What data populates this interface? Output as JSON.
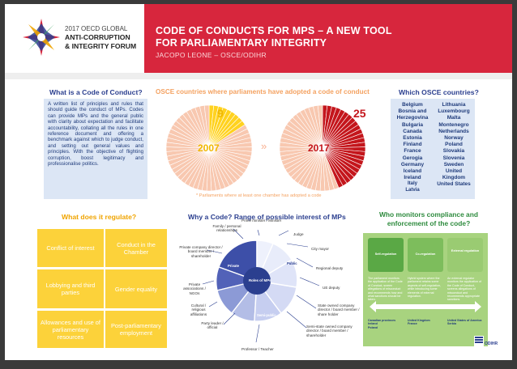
{
  "header": {
    "forum_line1": "2017 OECD GLOBAL",
    "forum_line2": "ANTI-CORRUPTION",
    "forum_line3": "& INTEGRITY FORUM",
    "title_line1": "CODE OF CONDUCTS FOR MPS – A NEW TOOL",
    "title_line2": "FOR PARLIAMENTARY INTEGRITY",
    "author": "JACOPO LEONE – OSCE/ODIHR"
  },
  "what_is": {
    "heading": "What is a Code of Conduct?",
    "text": "A written list of principles and rules that should guide the conduct of MPs. Codes can provide MPs and the general public with clarity about expectation and facilitate accountability, collating all the rules in one reference document and offering a benchmark against which to judge conduct, and setting out general values and principles. With the objective of flighting corruption, boost legitimacy and professionalise politics."
  },
  "adoption": {
    "heading": "OSCE countries where parliaments have adopted a code of conduct",
    "count_2007": "9",
    "count_2017": "25",
    "year_2007": "2007",
    "year_2017": "2017",
    "arrow": "»",
    "footnote": "* Parliaments where at least one chamber has adopted a code",
    "total_slices": 57,
    "colors": {
      "filled_2007": "#ffd21f",
      "filled_2017": "#c4161c",
      "empty": "#f8c8b0"
    }
  },
  "which": {
    "heading": "Which OSCE countries?",
    "left": [
      "Belgium",
      "Bosnia and",
      "Herzegovina",
      "Bulgaria",
      "Canada",
      "Estonia",
      "Finland",
      "France",
      "Gerogia",
      "Germany",
      "Iceland",
      "Ireland",
      "Italy",
      "Latvia"
    ],
    "right": [
      "Lithuania",
      "Luxembourg",
      "Malta",
      "Montenegro",
      "Netherlands",
      "Norway",
      "Poland",
      "Slovakia",
      "Slovenia",
      "Sweden",
      "United",
      "Kingdom",
      "United States"
    ]
  },
  "regulate": {
    "heading": "What does it regulate?",
    "tiles": [
      "Conflict of interest",
      "Conduct in the Chamber",
      "Lobbying and third parties",
      "Gender equality",
      "Allowances and use of parliamentary resources",
      "Post-parliamentary employment"
    ]
  },
  "range": {
    "heading": "Why a Code? Range of possible interest of MPs",
    "center": "Roles of MPs",
    "sectors": [
      "Private",
      "Public",
      "Semi-public"
    ],
    "labels": [
      "Prime minister / Minister",
      "Judge",
      "City mayor",
      "Regional deputy",
      "UE deputy",
      "State owned company director / board member / share holder",
      "Semi-state owned company director / board member / shareholder",
      "Professor / Teacher",
      "Party leader / official",
      "Cultural / religious affiliations",
      "Private associations / NGOs",
      "Private company director / board member / shareholder",
      "Family / personal relationships"
    ]
  },
  "monitor": {
    "heading": "Who monitors compliance and enforcement of the code?",
    "columns": [
      "Self-regulation",
      "Co-regulation",
      "External regulation"
    ],
    "descs": [
      "The parliament monitors the application of the Code of Conduct, screen allegations of misconduct and recommends how and what sanctions should be taken.",
      "Hybrid system where the parliament retains some aspects of self-regulation, while introducing some elements of external regulation.",
      "An external regulator monitors the application of the Code of Conduct, screens allegations of misconduct and recommends appropriate sanctions."
    ],
    "countries": [
      [
        "Canadian provinces",
        "Ireland",
        "Poland"
      ],
      [
        "United Kingdom",
        "France"
      ],
      [
        "United States of America",
        "Serbia"
      ]
    ],
    "logo_text": "ODIHR"
  }
}
